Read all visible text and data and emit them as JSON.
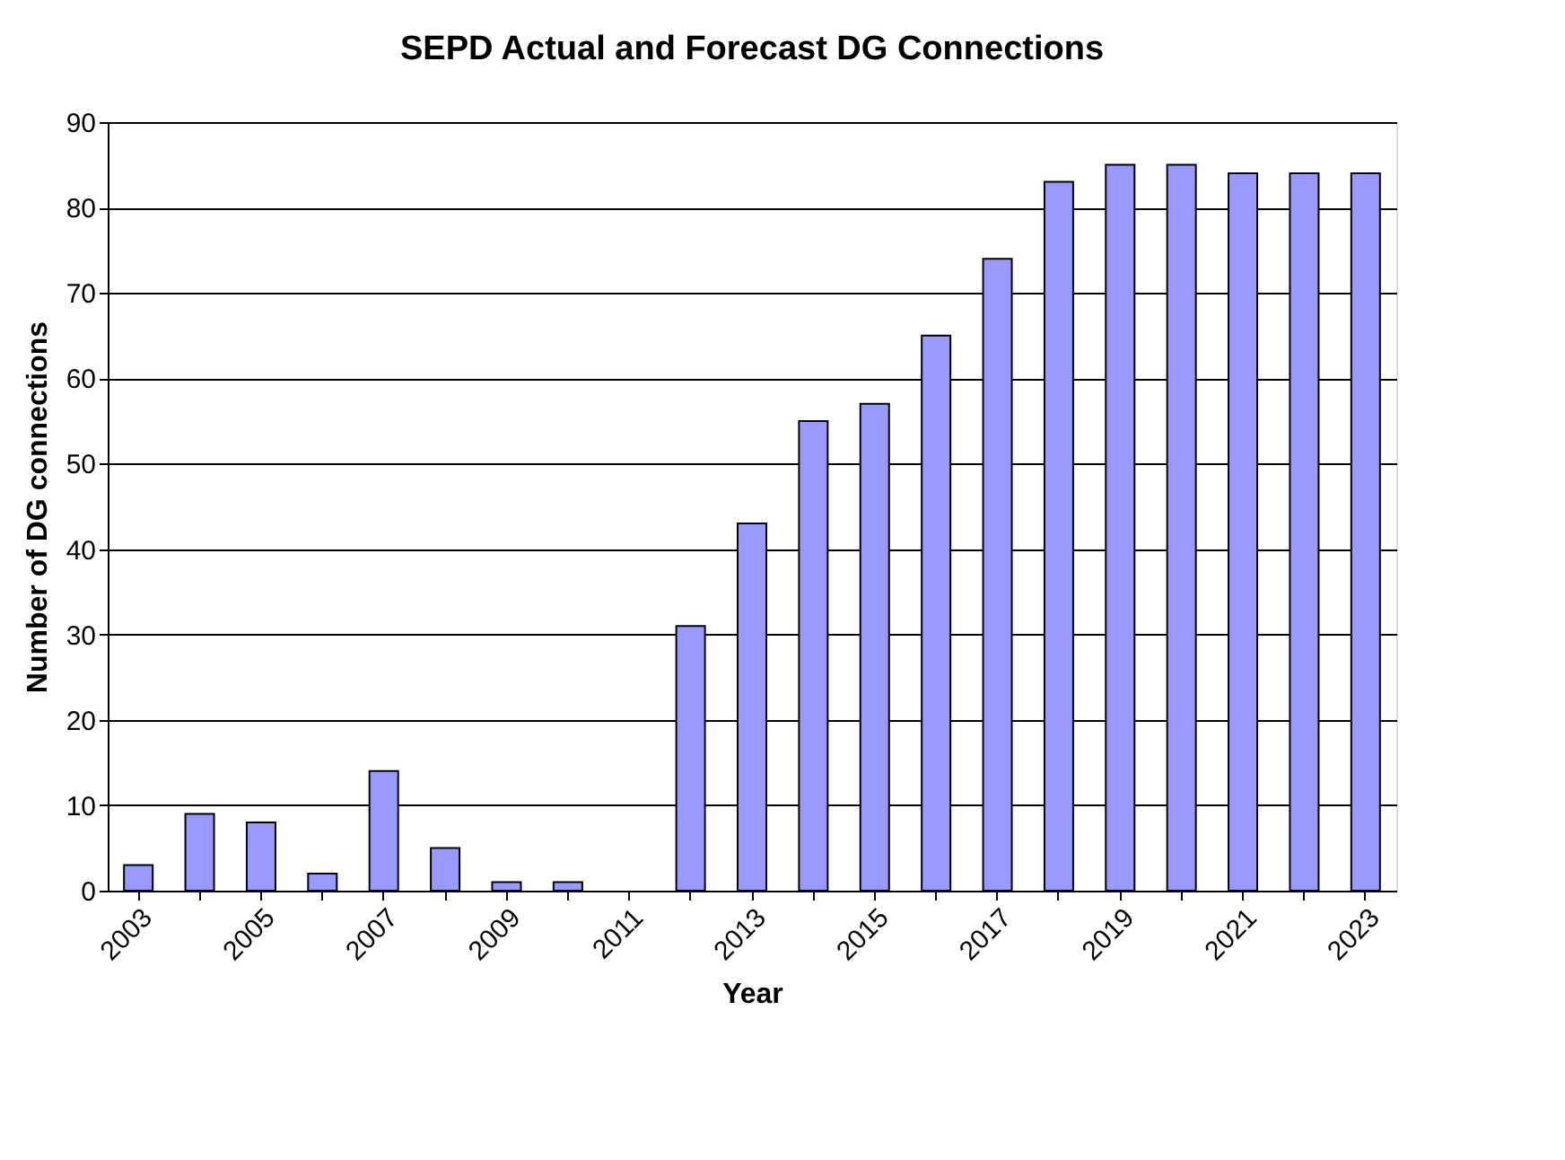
{
  "chart_data": {
    "type": "bar",
    "title": "SEPD Actual and Forecast DG Connections",
    "xlabel": "Year",
    "ylabel": "Number of DG connections",
    "categories": [
      "2003",
      null,
      "2005",
      null,
      "2007",
      null,
      "2009",
      null,
      "2011",
      null,
      "2013",
      null,
      "2015",
      null,
      "2017",
      null,
      "2019",
      null,
      "2021",
      null,
      "2023"
    ],
    "values": [
      3,
      9,
      8,
      2,
      14,
      5,
      1,
      1,
      null,
      31,
      43,
      55,
      57,
      65,
      74,
      83,
      85,
      85,
      84,
      84,
      84
    ],
    "color": "#9999ff",
    "ylim": [
      0,
      90
    ],
    "yticks": [
      0,
      10,
      20,
      30,
      40,
      50,
      60,
      70,
      80,
      90
    ],
    "grid": "y"
  }
}
